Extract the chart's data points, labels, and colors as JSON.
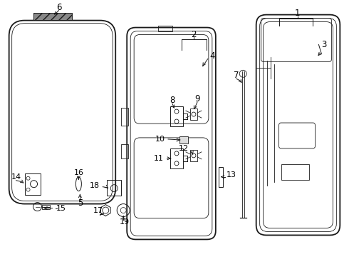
{
  "bg_color": "#ffffff",
  "line_color": "#1a1a1a",
  "label_color": "#000000",
  "lw_main": 1.3,
  "lw_med": 0.9,
  "lw_thin": 0.6,
  "figw": 4.9,
  "figh": 3.6,
  "dpi": 100
}
